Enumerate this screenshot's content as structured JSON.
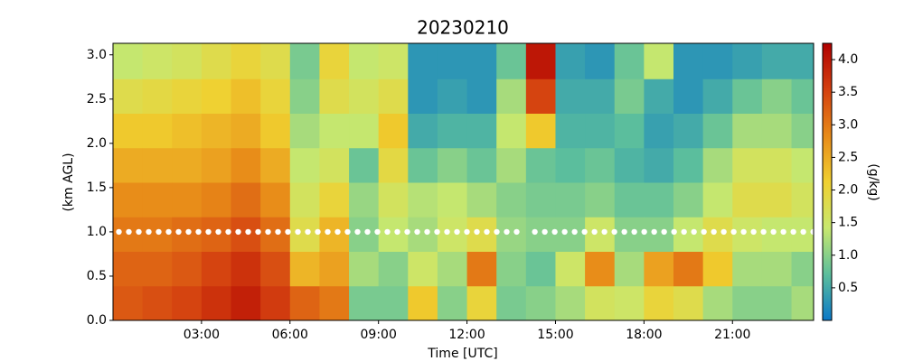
{
  "chart_data": {
    "type": "heatmap",
    "title": "20230210",
    "xlabel": "Time [UTC]",
    "ylabel": "(km AGL)",
    "colorbar_label": "(g/kg)",
    "xlim": [
      0,
      23.75
    ],
    "ylim": [
      0,
      3.13
    ],
    "clim": [
      0,
      4.25
    ],
    "xticks": [
      {
        "value": 3,
        "label": "03:00"
      },
      {
        "value": 6,
        "label": "06:00"
      },
      {
        "value": 9,
        "label": "09:00"
      },
      {
        "value": 12,
        "label": "12:00"
      },
      {
        "value": 15,
        "label": "15:00"
      },
      {
        "value": 18,
        "label": "18:00"
      },
      {
        "value": 21,
        "label": "21:00"
      }
    ],
    "yticks": [
      {
        "value": 0,
        "label": "0.0"
      },
      0.5,
      {
        "value": 1,
        "label": "1.0"
      },
      1.5,
      {
        "value": 2,
        "label": "2.0"
      },
      2.5,
      {
        "value": 3,
        "label": "3.0"
      }
    ],
    "cticks": [
      0.5,
      {
        "value": 1,
        "label": "1.0"
      },
      1.5,
      {
        "value": 2,
        "label": "2.0"
      },
      2.5,
      {
        "value": 3,
        "label": "3.0"
      },
      3.5,
      {
        "value": 4,
        "label": "4.0"
      }
    ],
    "colormap": [
      "#0a78c8",
      "#5cbf9c",
      "#c8e86e",
      "#f0d030",
      "#e88a18",
      "#d44010",
      "#b00000"
    ],
    "x_bins": [
      0,
      1,
      2,
      3,
      4,
      5,
      6,
      7,
      8,
      9,
      10,
      11,
      12,
      13,
      14,
      15,
      16,
      17,
      18,
      19,
      20,
      21,
      22,
      23,
      23.75
    ],
    "y_bins": [
      0,
      0.39,
      0.78,
      1.17,
      1.56,
      1.95,
      2.34,
      2.73,
      3.13
    ],
    "values": [
      [
        3.3,
        3.2,
        3.0,
        2.8,
        2.5,
        2.2,
        1.8,
        1.4
      ],
      [
        3.4,
        3.2,
        3.0,
        2.8,
        2.5,
        2.2,
        1.9,
        1.5
      ],
      [
        3.5,
        3.3,
        3.1,
        2.8,
        2.5,
        2.3,
        2.0,
        1.6
      ],
      [
        3.7,
        3.5,
        3.2,
        2.9,
        2.6,
        2.4,
        2.1,
        1.8
      ],
      [
        3.9,
        3.7,
        3.4,
        3.1,
        2.8,
        2.5,
        2.3,
        2.0
      ],
      [
        3.6,
        3.4,
        3.1,
        2.8,
        2.5,
        2.2,
        2.0,
        1.8
      ],
      [
        3.2,
        2.4,
        1.8,
        1.6,
        1.4,
        1.2,
        1.0,
        0.9
      ],
      [
        3.0,
        2.6,
        2.4,
        2.0,
        1.6,
        1.4,
        1.8,
        2.0
      ],
      [
        0.9,
        1.2,
        1.0,
        1.1,
        0.8,
        1.4,
        1.6,
        1.4
      ],
      [
        0.9,
        1.0,
        1.4,
        1.6,
        1.9,
        2.2,
        1.8,
        1.5
      ],
      [
        2.2,
        1.5,
        1.2,
        1.3,
        0.8,
        0.5,
        0.3,
        0.3
      ],
      [
        1.0,
        1.2,
        1.5,
        1.4,
        1.0,
        0.6,
        0.4,
        0.3
      ],
      [
        2.0,
        3.0,
        1.8,
        1.2,
        0.8,
        0.6,
        0.3,
        0.3
      ],
      [
        0.9,
        1.0,
        1.1,
        1.0,
        1.2,
        1.4,
        1.2,
        0.8
      ],
      [
        1.0,
        0.8,
        1.0,
        0.9,
        0.8,
        2.2,
        3.5,
        4.0
      ],
      [
        1.2,
        1.5,
        1.0,
        0.9,
        0.7,
        0.6,
        0.5,
        0.4
      ],
      [
        1.6,
        2.8,
        1.5,
        1.0,
        0.8,
        0.6,
        0.5,
        0.3
      ],
      [
        1.5,
        1.2,
        1.0,
        0.8,
        0.6,
        0.7,
        0.9,
        0.8
      ],
      [
        2.0,
        2.6,
        1.0,
        0.8,
        0.5,
        0.4,
        0.5,
        1.4
      ],
      [
        1.8,
        3.0,
        1.4,
        1.0,
        0.7,
        0.5,
        0.3,
        0.3
      ],
      [
        1.2,
        2.2,
        1.8,
        1.4,
        1.2,
        0.8,
        0.5,
        0.3
      ],
      [
        1.0,
        1.2,
        1.5,
        1.8,
        1.6,
        1.2,
        0.8,
        0.4
      ],
      [
        1.0,
        1.2,
        1.4,
        1.8,
        1.6,
        1.2,
        1.0,
        0.5
      ],
      [
        1.2,
        1.0,
        1.4,
        1.6,
        1.4,
        1.0,
        0.8,
        0.5
      ]
    ],
    "overlay": {
      "y": 1.0,
      "x_ranges": [
        [
          0.2,
          13.7
        ],
        [
          14.3,
          23.75
        ]
      ],
      "color": "#ffffff"
    }
  }
}
